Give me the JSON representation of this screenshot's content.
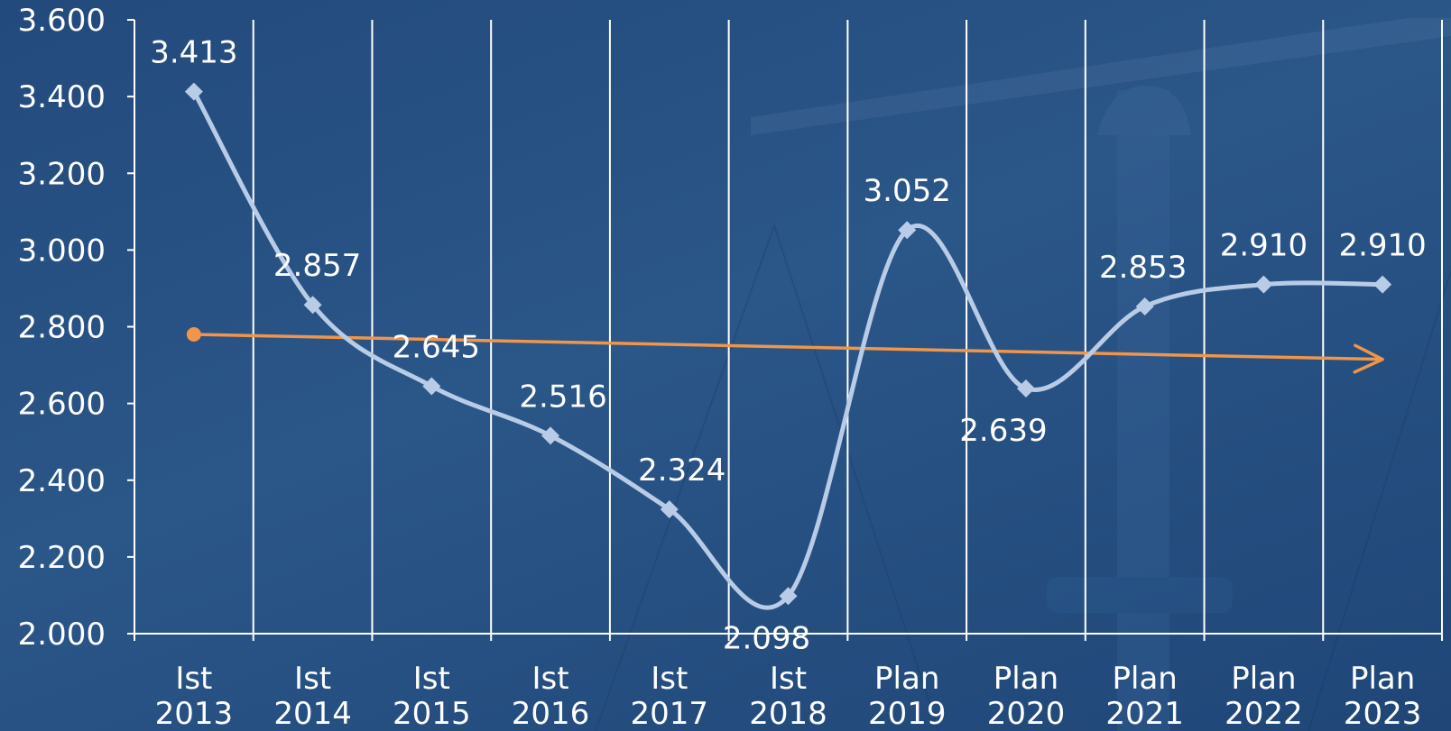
{
  "chart_data": {
    "type": "line",
    "categories": [
      [
        "Ist",
        "2013"
      ],
      [
        "Ist",
        "2014"
      ],
      [
        "Ist",
        "2015"
      ],
      [
        "Ist",
        "2016"
      ],
      [
        "Ist",
        "2017"
      ],
      [
        "Ist",
        "2018"
      ],
      [
        "Plan",
        "2019"
      ],
      [
        "Plan",
        "2020"
      ],
      [
        "Plan",
        "2021"
      ],
      [
        "Plan",
        "2022"
      ],
      [
        "Plan",
        "2023"
      ]
    ],
    "series": [
      {
        "values": [
          3413,
          2857,
          2645,
          2516,
          2324,
          2098,
          3052,
          2639,
          2853,
          2910,
          2910
        ],
        "labels": [
          "3.413",
          "2.857",
          "2.645",
          "2.516",
          "2.324",
          "2.098",
          "3.052",
          "2.639",
          "2.853",
          "2.910",
          "2.910"
        ],
        "color": "#b8cce8",
        "marker": "diamond",
        "smooth": true
      }
    ],
    "trend": {
      "start": 2780,
      "end": 2715,
      "color": "#f0954a",
      "start_marker": "circle",
      "end_marker": "arrow"
    },
    "ylim": [
      2000,
      3600
    ],
    "yticks": [
      "2.000",
      "2.200",
      "2.400",
      "2.600",
      "2.800",
      "3.000",
      "3.200",
      "3.400",
      "3.600"
    ],
    "grid": "vertical",
    "gridColor": "#ffffff",
    "legend": "none",
    "title": "",
    "xlabel": "",
    "ylabel": ""
  }
}
